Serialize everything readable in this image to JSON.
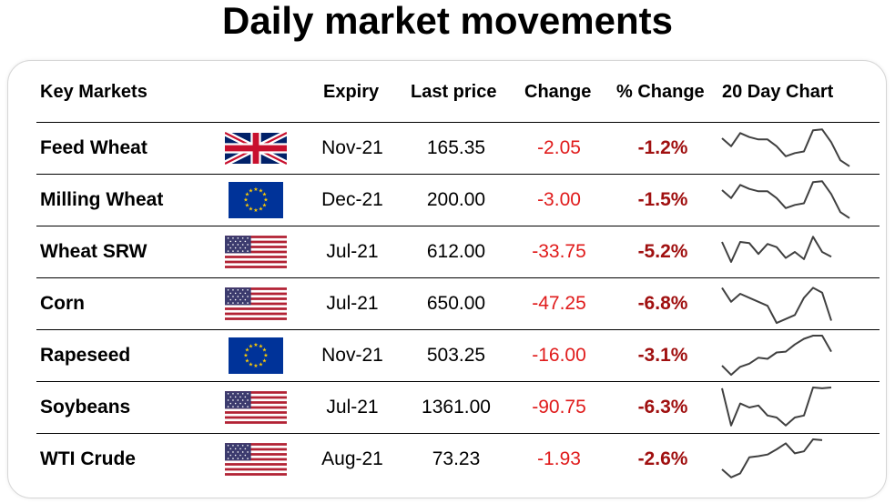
{
  "title": "Daily market movements",
  "headers": {
    "market": "Key Markets",
    "expiry": "Expiry",
    "last_price": "Last price",
    "change": "Change",
    "pct_change": "% Change",
    "chart": "20 Day Chart"
  },
  "colors": {
    "change_text": "#e01b1b",
    "pct_text": "#a01010",
    "sparkline": "#404040"
  },
  "rows": [
    {
      "market": "Feed Wheat",
      "flag": "uk-flag-icon",
      "expiry": "Nov-21",
      "last_price": "165.35",
      "change": "-2.05",
      "pct_change": "-1.2%",
      "spark": [
        0.75,
        0.55,
        0.88,
        0.78,
        0.72,
        0.72,
        0.55,
        0.3,
        0.38,
        0.42,
        0.95,
        0.97,
        0.65,
        0.2,
        0.05
      ]
    },
    {
      "market": "Milling Wheat",
      "flag": "eu-flag-icon",
      "expiry": "Dec-21",
      "last_price": "200.00",
      "change": "-3.00",
      "pct_change": "-1.5%",
      "spark": [
        0.75,
        0.55,
        0.88,
        0.78,
        0.72,
        0.72,
        0.55,
        0.3,
        0.38,
        0.42,
        0.95,
        0.97,
        0.65,
        0.2,
        0.05
      ]
    },
    {
      "market": "Wheat SRW",
      "flag": "us-flag-icon",
      "expiry": "Jul-21",
      "last_price": "612.00",
      "change": "-33.75",
      "pct_change": "-5.2%",
      "spark": [
        0.75,
        0.25,
        0.75,
        0.72,
        0.45,
        0.7,
        0.62,
        0.35,
        0.5,
        0.32,
        0.88,
        0.5,
        0.38
      ]
    },
    {
      "market": "Corn",
      "flag": "us-flag-icon",
      "expiry": "Jul-21",
      "last_price": "650.00",
      "change": "-47.25",
      "pct_change": "-6.8%",
      "spark": [
        0.9,
        0.55,
        0.75,
        0.65,
        0.55,
        0.45,
        0.02,
        0.12,
        0.22,
        0.65,
        0.9,
        0.78,
        0.08
      ]
    },
    {
      "market": "Rapeseed",
      "flag": "eu-flag-icon",
      "expiry": "Nov-21",
      "last_price": "503.25",
      "change": "-16.00",
      "pct_change": "-3.1%",
      "spark": [
        0.25,
        0.02,
        0.22,
        0.3,
        0.45,
        0.42,
        0.58,
        0.6,
        0.78,
        0.92,
        1.0,
        1.0,
        0.6
      ]
    },
    {
      "market": "Soybeans",
      "flag": "us-flag-icon",
      "expiry": "Jul-21",
      "last_price": "1361.00",
      "change": "-90.75",
      "pct_change": "-6.3%",
      "spark": [
        0.98,
        0.05,
        0.6,
        0.5,
        0.55,
        0.3,
        0.25,
        0.05,
        0.25,
        0.3,
        1.0,
        0.98,
        1.0
      ]
    },
    {
      "market": "WTI Crude",
      "flag": "us-flag-icon",
      "expiry": "Aug-21",
      "last_price": "73.23",
      "change": "-1.93",
      "pct_change": "-2.6%",
      "spark": [
        0.25,
        0.05,
        0.15,
        0.55,
        0.58,
        0.62,
        0.75,
        0.9,
        0.65,
        0.7,
        1.0,
        0.98
      ]
    }
  ]
}
